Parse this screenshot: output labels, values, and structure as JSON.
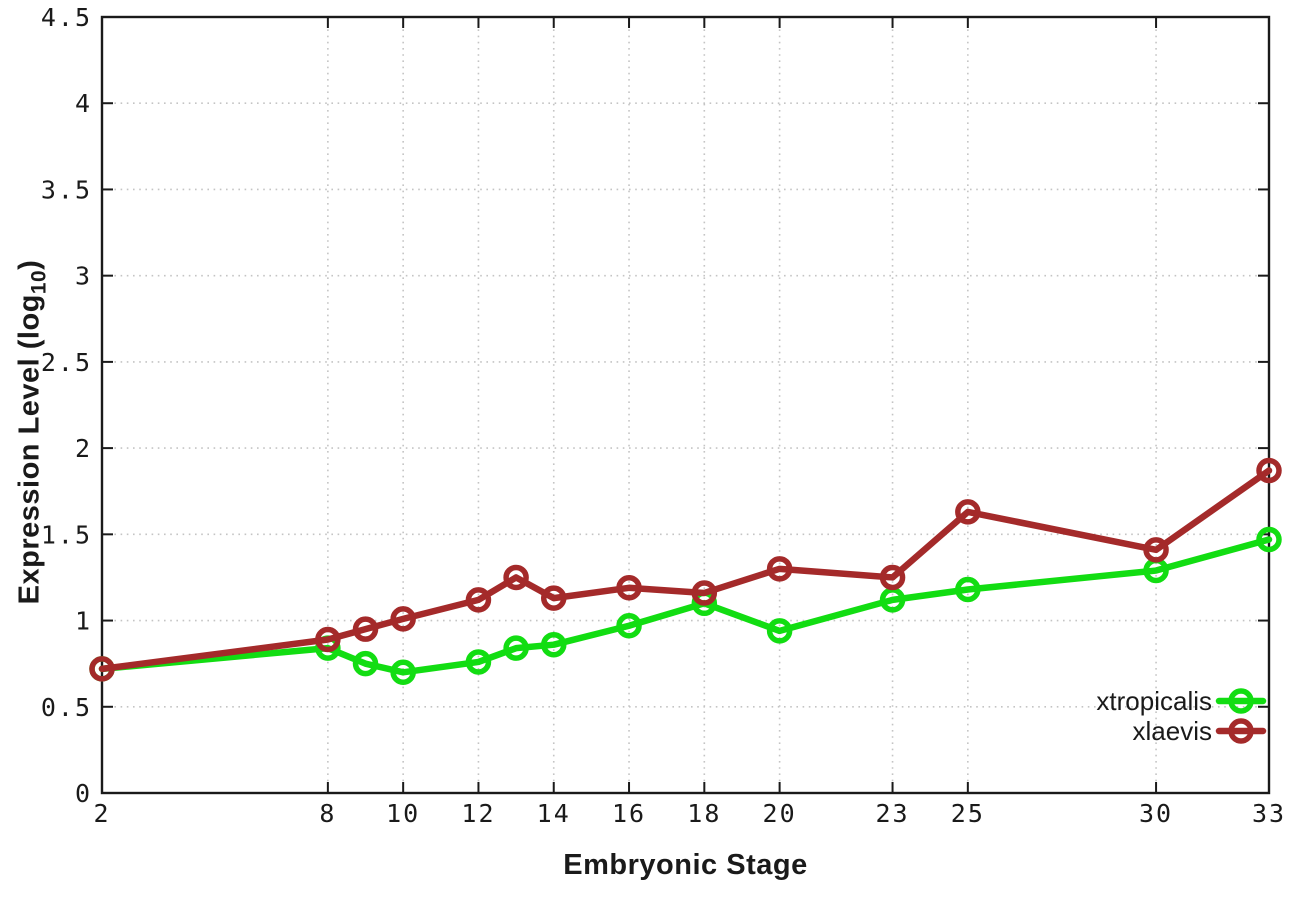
{
  "chart_data": {
    "type": "line",
    "title": "",
    "xlabel": "Embryonic Stage",
    "ylabel": {
      "main": "Expression Level (log",
      "sub": "10",
      "close": ")"
    },
    "xlim": [
      2,
      33
    ],
    "ylim": [
      0,
      4.5
    ],
    "grid": true,
    "legend_position": "bottom-right-inside",
    "x": [
      2,
      8,
      9,
      10,
      12,
      13,
      14,
      16,
      18,
      20,
      23,
      25,
      30,
      33
    ],
    "xtick_values": [
      2,
      8,
      10,
      12,
      14,
      16,
      18,
      20,
      23,
      25,
      30,
      33
    ],
    "xtick_labels": [
      "2",
      "8",
      "10",
      "12",
      "14",
      "16",
      "18",
      "20",
      "23",
      "25",
      "30",
      "33"
    ],
    "ytick_values": [
      0,
      0.5,
      1,
      1.5,
      2,
      2.5,
      3,
      3.5,
      4,
      4.5
    ],
    "ytick_labels": [
      "0",
      "0.5",
      "1",
      "1.5",
      "2",
      "2.5",
      "3",
      "3.5",
      "4",
      "4.5"
    ],
    "series": [
      {
        "name": "xtropicalis",
        "color": "#12dd12",
        "marker": "open-circle",
        "values": [
          0.72,
          0.84,
          0.75,
          0.7,
          0.76,
          0.84,
          0.86,
          0.97,
          1.1,
          0.94,
          1.12,
          1.18,
          1.29,
          1.47
        ]
      },
      {
        "name": "xlaevis",
        "color": "#a42a2a",
        "marker": "open-circle",
        "values": [
          0.72,
          0.89,
          0.95,
          1.01,
          1.12,
          1.25,
          1.13,
          1.19,
          1.16,
          1.3,
          1.25,
          1.63,
          1.41,
          1.87
        ]
      }
    ],
    "colors": {
      "axis": "#1a1a1a",
      "grid": "#c4c4c4",
      "text": "#1a1a1a",
      "background": "#ffffff"
    }
  }
}
